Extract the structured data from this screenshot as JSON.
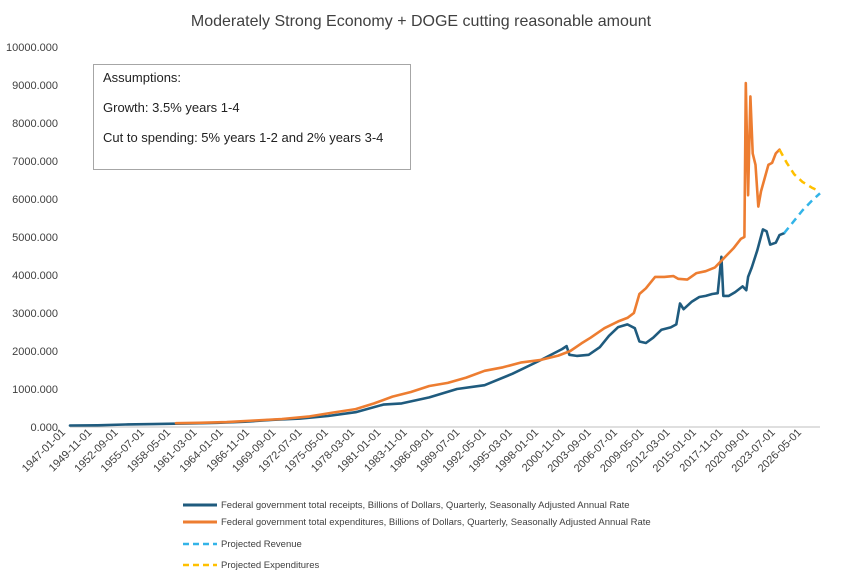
{
  "chart_data": {
    "type": "line",
    "title": "Moderately Strong Economy + DOGE cutting reasonable amount",
    "ylim": [
      0,
      10000
    ],
    "y_ticks": [
      "0.000",
      "1000.000",
      "2000.000",
      "3000.000",
      "4000.000",
      "5000.000",
      "6000.000",
      "7000.000",
      "8000.000",
      "9000.000",
      "10000.000"
    ],
    "x_ticks": [
      "1947-01-01",
      "1949-11-01",
      "1952-09-01",
      "1955-07-01",
      "1958-05-01",
      "1961-03-01",
      "1964-01-01",
      "1966-11-01",
      "1969-09-01",
      "1972-07-01",
      "1975-05-01",
      "1978-03-01",
      "1981-01-01",
      "1983-11-01",
      "1986-09-01",
      "1989-07-01",
      "1992-05-01",
      "1995-03-01",
      "1998-01-01",
      "2000-11-01",
      "2003-09-01",
      "2006-07-01",
      "2009-05-01",
      "2012-03-01",
      "2015-01-01",
      "2017-11-01",
      "2020-09-01",
      "2023-07-01",
      "2026-05-01"
    ],
    "xlim": [
      1947.0,
      2028.4
    ],
    "legend_position": "bottom",
    "series": [
      {
        "name": "Federal government total receipts, Billions of Dollars, Quarterly, Seasonally Adjusted Annual Rate",
        "color": "#1f5b7e",
        "dash": false,
        "points": [
          [
            1947,
            40
          ],
          [
            1950,
            45
          ],
          [
            1953,
            65
          ],
          [
            1956,
            75
          ],
          [
            1960,
            95
          ],
          [
            1963,
            110
          ],
          [
            1966,
            140
          ],
          [
            1969,
            190
          ],
          [
            1972,
            220
          ],
          [
            1975,
            290
          ],
          [
            1978,
            390
          ],
          [
            1981,
            590
          ],
          [
            1983,
            620
          ],
          [
            1986,
            780
          ],
          [
            1989,
            1000
          ],
          [
            1992,
            1100
          ],
          [
            1995,
            1400
          ],
          [
            1998,
            1750
          ],
          [
            2000.4,
            2050
          ],
          [
            2000.9,
            2130
          ],
          [
            2001.2,
            1900
          ],
          [
            2002,
            1870
          ],
          [
            2003.3,
            1900
          ],
          [
            2004.5,
            2100
          ],
          [
            2005.5,
            2400
          ],
          [
            2006.5,
            2630
          ],
          [
            2007.5,
            2700
          ],
          [
            2008.3,
            2600
          ],
          [
            2008.8,
            2250
          ],
          [
            2009.5,
            2210
          ],
          [
            2010.3,
            2350
          ],
          [
            2011.2,
            2560
          ],
          [
            2012.2,
            2620
          ],
          [
            2012.8,
            2700
          ],
          [
            2013.2,
            3250
          ],
          [
            2013.6,
            3100
          ],
          [
            2014.5,
            3300
          ],
          [
            2015.3,
            3420
          ],
          [
            2016,
            3450
          ],
          [
            2016.7,
            3500
          ],
          [
            2017.3,
            3520
          ],
          [
            2017.7,
            4480
          ],
          [
            2017.9,
            3450
          ],
          [
            2018.5,
            3450
          ],
          [
            2019.2,
            3550
          ],
          [
            2020,
            3700
          ],
          [
            2020.4,
            3600
          ],
          [
            2020.6,
            3950
          ],
          [
            2021,
            4200
          ],
          [
            2021.6,
            4650
          ],
          [
            2022.2,
            5200
          ],
          [
            2022.6,
            5150
          ],
          [
            2023,
            4800
          ],
          [
            2023.6,
            4850
          ],
          [
            2024,
            5050
          ],
          [
            2024.5,
            5100
          ]
        ]
      },
      {
        "name": "Federal government total expenditures, Billions of Dollars, Quarterly, Seasonally Adjusted Annual Rate",
        "color": "#ed7d31",
        "dash": false,
        "points": [
          [
            1958.5,
            100
          ],
          [
            1961,
            110
          ],
          [
            1964,
            130
          ],
          [
            1967,
            170
          ],
          [
            1970,
            210
          ],
          [
            1973,
            280
          ],
          [
            1975.5,
            380
          ],
          [
            1978,
            470
          ],
          [
            1980,
            620
          ],
          [
            1982,
            800
          ],
          [
            1984,
            920
          ],
          [
            1986,
            1080
          ],
          [
            1988,
            1160
          ],
          [
            1990,
            1300
          ],
          [
            1992,
            1480
          ],
          [
            1994,
            1570
          ],
          [
            1996,
            1700
          ],
          [
            1998,
            1760
          ],
          [
            2000,
            1880
          ],
          [
            2001.3,
            2000
          ],
          [
            2002.5,
            2200
          ],
          [
            2003.5,
            2350
          ],
          [
            2005,
            2600
          ],
          [
            2006.5,
            2780
          ],
          [
            2007.5,
            2870
          ],
          [
            2008.2,
            3000
          ],
          [
            2008.8,
            3500
          ],
          [
            2009.5,
            3650
          ],
          [
            2010.5,
            3950
          ],
          [
            2011.5,
            3950
          ],
          [
            2012.5,
            3970
          ],
          [
            2013,
            3900
          ],
          [
            2014,
            3880
          ],
          [
            2015,
            4050
          ],
          [
            2016,
            4100
          ],
          [
            2017,
            4200
          ],
          [
            2017.6,
            4350
          ],
          [
            2018.2,
            4500
          ],
          [
            2019,
            4700
          ],
          [
            2019.8,
            4950
          ],
          [
            2020.2,
            5000
          ],
          [
            2020.35,
            9050
          ],
          [
            2020.6,
            6100
          ],
          [
            2020.85,
            8700
          ],
          [
            2021.1,
            7200
          ],
          [
            2021.4,
            6900
          ],
          [
            2021.7,
            5800
          ],
          [
            2022,
            6200
          ],
          [
            2022.4,
            6550
          ],
          [
            2022.8,
            6900
          ],
          [
            2023.2,
            6950
          ],
          [
            2023.6,
            7200
          ],
          [
            2024,
            7300
          ]
        ]
      },
      {
        "name": "Projected Revenue",
        "color": "#33b4e8",
        "dash": true,
        "points": [
          [
            2024.5,
            5100
          ],
          [
            2025.5,
            5400
          ],
          [
            2026.5,
            5700
          ],
          [
            2027.5,
            5950
          ],
          [
            2028.4,
            6150
          ]
        ]
      },
      {
        "name": "Projected Expenditures",
        "color": "#ffc000",
        "dash": true,
        "points": [
          [
            2024,
            7300
          ],
          [
            2024.8,
            6950
          ],
          [
            2025.6,
            6650
          ],
          [
            2026.5,
            6450
          ],
          [
            2027.5,
            6300
          ],
          [
            2028.4,
            6200
          ]
        ]
      }
    ]
  },
  "notes": {
    "heading": "Assumptions:",
    "growth": "Growth:  3.5% years 1-4",
    "cuts": "Cut to spending: 5% years 1-2 and 2% years 3-4"
  }
}
